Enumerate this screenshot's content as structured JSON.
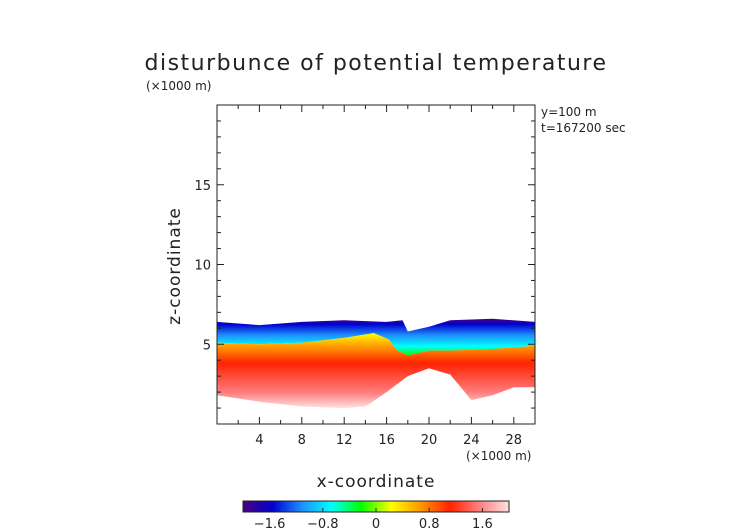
{
  "title": "disturbunce of potential temperature",
  "yunit_top": "(×1000 m)",
  "xunit_bottom": "(×1000 m)",
  "info": {
    "line1": "y=100  m",
    "line2": "t=167200 sec"
  },
  "chart_data": {
    "type": "heatmap",
    "title": "disturbunce of potential temperature",
    "xlabel": "x-coordinate",
    "ylabel": "z-coordinate",
    "x_unit": "(×1000 m)",
    "y_unit": "(×1000 m)",
    "xlim": [
      0,
      30
    ],
    "ylim": [
      0,
      20
    ],
    "x_ticks": [
      4,
      8,
      12,
      16,
      20,
      24,
      28
    ],
    "y_ticks": [
      5,
      10,
      15
    ],
    "colorbar": {
      "range": [
        -2,
        2
      ],
      "ticks": [
        "-1.6",
        "-0.8",
        "0",
        "0.8",
        "1.6"
      ],
      "colors": [
        "#4b0082",
        "#0000cd",
        "#1e90ff",
        "#00ffff",
        "#00ff00",
        "#ffff00",
        "#ff9900",
        "#ff2200",
        "#ff8080",
        "#ffe0e0"
      ]
    },
    "field": {
      "top_boundary": [
        [
          0,
          6.4
        ],
        [
          4,
          6.2
        ],
        [
          8,
          6.4
        ],
        [
          12,
          6.5
        ],
        [
          16,
          6.4
        ],
        [
          17.5,
          6.5
        ],
        [
          18,
          5.8
        ],
        [
          20,
          6.1
        ],
        [
          22,
          6.5
        ],
        [
          26,
          6.6
        ],
        [
          30,
          6.4
        ]
      ],
      "zero_line": [
        [
          0,
          5.1
        ],
        [
          4,
          5.0
        ],
        [
          8,
          5.1
        ],
        [
          12,
          5.4
        ],
        [
          14.8,
          5.7
        ],
        [
          16.2,
          5.3
        ],
        [
          17,
          4.6
        ],
        [
          18,
          4.3
        ],
        [
          20,
          4.6
        ],
        [
          22,
          4.6
        ],
        [
          26,
          4.7
        ],
        [
          30,
          4.9
        ]
      ],
      "bottom_boundary": [
        [
          0,
          1.8
        ],
        [
          4,
          1.4
        ],
        [
          8,
          1.1
        ],
        [
          12,
          1.0
        ],
        [
          14,
          1.1
        ],
        [
          16,
          2.0
        ],
        [
          18,
          3.0
        ],
        [
          20,
          3.5
        ],
        [
          22,
          3.1
        ],
        [
          23,
          2.3
        ],
        [
          24,
          1.5
        ],
        [
          26,
          1.8
        ],
        [
          28,
          2.3
        ],
        [
          30,
          2.3
        ]
      ]
    }
  }
}
